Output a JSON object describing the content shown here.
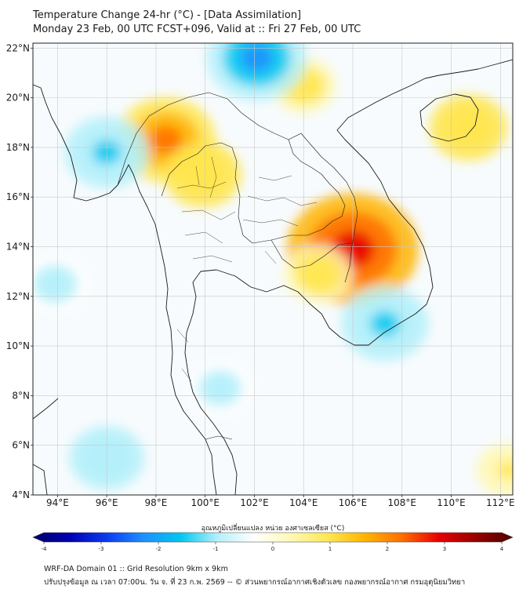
{
  "title": {
    "line1": "Temperature Change 24-hr (°C) - [Data Assimilation]",
    "line2": "Monday 23 Feb, 00 UTC FCST+096, Valid at :: Fri 27 Feb, 00 UTC"
  },
  "map": {
    "lon_range": [
      93,
      112.5
    ],
    "lat_range": [
      4,
      22.2
    ],
    "lat_ticks": [
      "22°N",
      "20°N",
      "18°N",
      "16°N",
      "14°N",
      "12°N",
      "10°N",
      "8°N",
      "6°N",
      "4°N"
    ],
    "lon_ticks": [
      "94°E",
      "96°E",
      "98°E",
      "100°E",
      "102°E",
      "104°E",
      "106°E",
      "108°E",
      "110°E",
      "112°E"
    ],
    "warm_spots": [
      {
        "lon": 98.4,
        "lat": 18.3,
        "value": 1.9
      },
      {
        "lon": 106.0,
        "lat": 13.9,
        "value": 2.9
      },
      {
        "lon": 99.9,
        "lat": 16.9,
        "value": 1.2
      },
      {
        "lon": 110.7,
        "lat": 18.8,
        "value": 1.2
      },
      {
        "lon": 104.6,
        "lat": 12.9,
        "value": 0.9
      },
      {
        "lon": 104.0,
        "lat": 20.5,
        "value": 0.8
      },
      {
        "lon": 112.3,
        "lat": 5.0,
        "value": 0.7
      }
    ],
    "cool_spots": [
      {
        "lon": 102.1,
        "lat": 21.6,
        "value": -1.9
      },
      {
        "lon": 96.0,
        "lat": 17.8,
        "value": -1.4
      },
      {
        "lon": 107.3,
        "lat": 10.9,
        "value": -1.5
      },
      {
        "lon": 93.9,
        "lat": 12.5,
        "value": -0.9
      },
      {
        "lon": 96.0,
        "lat": 5.5,
        "value": -1.1
      },
      {
        "lon": 100.6,
        "lat": 8.3,
        "value": -0.8
      }
    ]
  },
  "colorbar": {
    "title": "อุณหภูมิเปลี่ยนแปลง หน่วย องศาเซลเซียส (°C)",
    "range": [
      -4,
      4
    ],
    "ticks": [
      "-4",
      "-3",
      "-2",
      "-1",
      "0",
      "1",
      "2",
      "3",
      "4"
    ],
    "colors": [
      "#000068",
      "#0000b4",
      "#0a3cf0",
      "#1e90ff",
      "#00c8f0",
      "#b4f0fa",
      "#ffffff",
      "#fff8b4",
      "#ffe650",
      "#ffb400",
      "#ff6e00",
      "#e60000",
      "#960000",
      "#500000"
    ]
  },
  "footer": {
    "line1": "WRF-DA Domain 01 :: Grid Resolution 9km x 9km",
    "line2": "ปรับปรุงข้อมูล ณ เวลา 07:00น. วัน จ. ที่ 23 ก.พ. 2569 -- © ส่วนพยากรณ์อากาศเชิงตัวเลข กองพยากรณ์อากาศ กรมอุตุนิยมวิทยา"
  }
}
